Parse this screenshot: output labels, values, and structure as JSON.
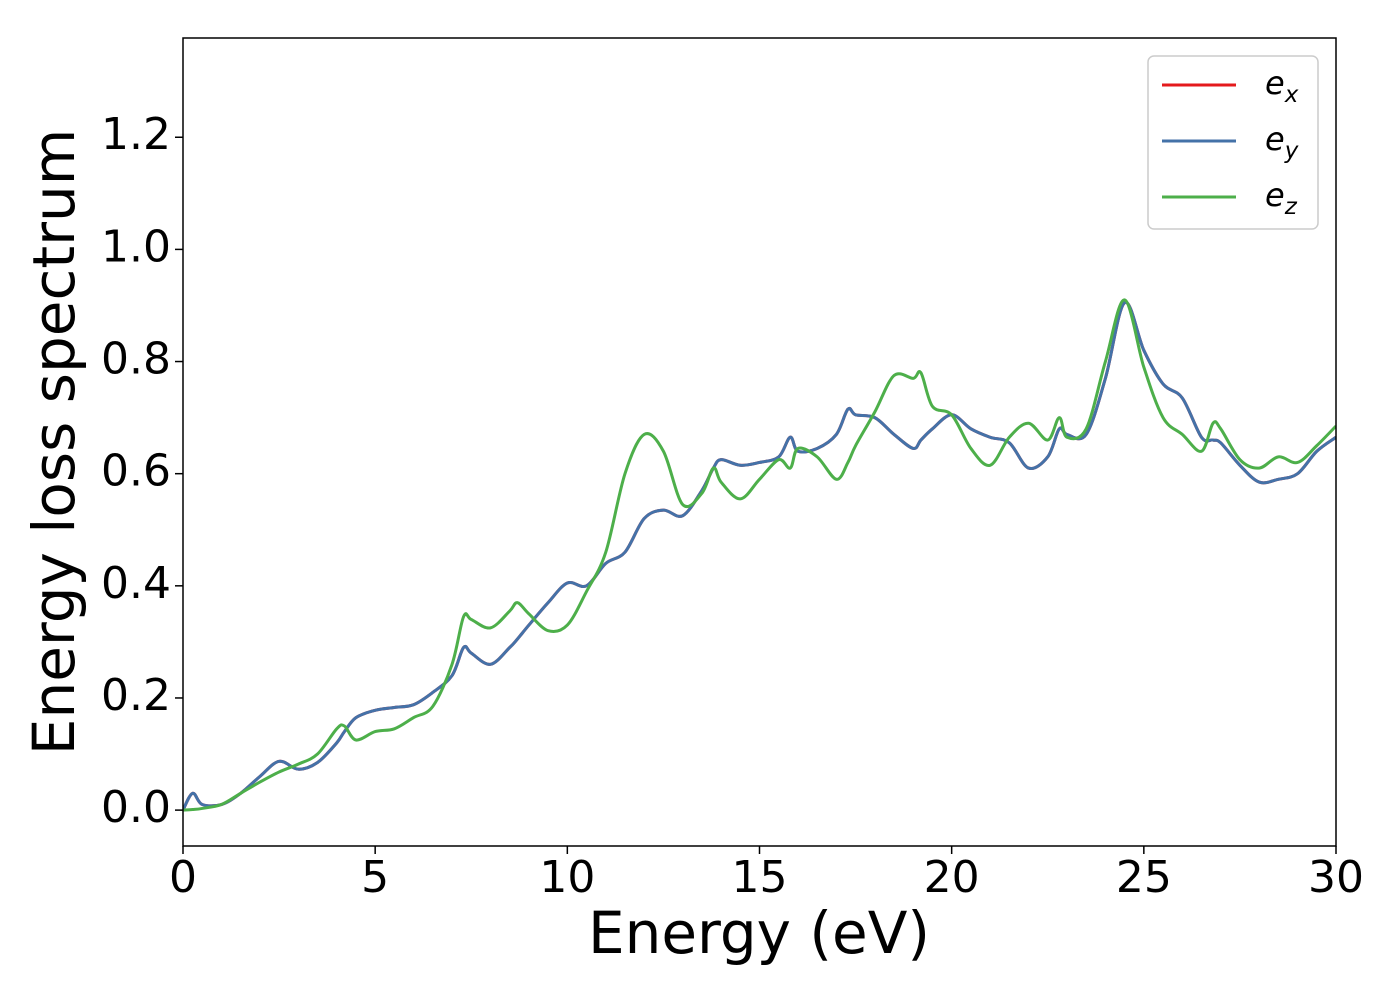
{
  "chart_data": {
    "type": "line",
    "xlabel": "Energy (eV)",
    "ylabel": "Energy loss spectrum",
    "x": [
      0,
      0.25,
      0.5,
      1,
      1.5,
      2,
      2.5,
      3,
      3.5,
      4,
      4.2,
      4.5,
      5,
      5.5,
      6,
      6.5,
      7,
      7.3,
      7.5,
      8,
      8.5,
      8.7,
      9,
      9.5,
      10,
      10.5,
      11,
      11.5,
      12,
      12.5,
      13,
      13.5,
      13.8,
      14,
      14.5,
      15,
      15.5,
      15.8,
      16,
      16.5,
      17,
      17.3,
      17.5,
      18,
      18.5,
      19,
      19.2,
      19.5,
      20,
      20.5,
      21,
      21.5,
      22,
      22.5,
      22.8,
      23,
      23.5,
      24,
      24.5,
      25,
      25.5,
      26,
      26.5,
      26.8,
      27,
      27.5,
      28,
      28.5,
      29,
      29.5,
      30
    ],
    "series": [
      {
        "name": "e_x",
        "color": "#e41a1c",
        "values": [
          0,
          0.03,
          0.01,
          0.01,
          0.03,
          0.06,
          0.087,
          0.073,
          0.085,
          0.12,
          0.14,
          0.165,
          0.178,
          0.183,
          0.188,
          0.21,
          0.24,
          0.29,
          0.28,
          0.26,
          0.29,
          0.305,
          0.33,
          0.37,
          0.405,
          0.4,
          0.44,
          0.46,
          0.52,
          0.535,
          0.525,
          0.57,
          0.61,
          0.625,
          0.615,
          0.62,
          0.63,
          0.665,
          0.64,
          0.645,
          0.67,
          0.715,
          0.705,
          0.7,
          0.67,
          0.645,
          0.66,
          0.68,
          0.705,
          0.68,
          0.665,
          0.655,
          0.61,
          0.63,
          0.68,
          0.67,
          0.67,
          0.77,
          0.905,
          0.82,
          0.76,
          0.735,
          0.665,
          0.66,
          0.655,
          0.615,
          0.585,
          0.59,
          0.6,
          0.64,
          0.665
        ]
      },
      {
        "name": "e_y",
        "color": "#4472a8",
        "values": [
          0,
          0.03,
          0.01,
          0.01,
          0.03,
          0.06,
          0.087,
          0.073,
          0.085,
          0.12,
          0.14,
          0.165,
          0.178,
          0.183,
          0.188,
          0.21,
          0.24,
          0.29,
          0.28,
          0.26,
          0.29,
          0.305,
          0.33,
          0.37,
          0.405,
          0.4,
          0.44,
          0.46,
          0.52,
          0.535,
          0.525,
          0.57,
          0.61,
          0.625,
          0.615,
          0.62,
          0.63,
          0.665,
          0.64,
          0.645,
          0.67,
          0.715,
          0.705,
          0.7,
          0.67,
          0.645,
          0.66,
          0.68,
          0.705,
          0.68,
          0.665,
          0.655,
          0.61,
          0.63,
          0.68,
          0.67,
          0.67,
          0.77,
          0.905,
          0.82,
          0.76,
          0.735,
          0.665,
          0.66,
          0.655,
          0.615,
          0.585,
          0.59,
          0.6,
          0.64,
          0.665
        ]
      },
      {
        "name": "e_z",
        "color": "#4daf4a",
        "values": [
          0,
          0.001,
          0.003,
          0.01,
          0.03,
          0.05,
          0.068,
          0.082,
          0.1,
          0.145,
          0.15,
          0.125,
          0.14,
          0.145,
          0.165,
          0.185,
          0.26,
          0.345,
          0.34,
          0.325,
          0.355,
          0.37,
          0.35,
          0.32,
          0.33,
          0.39,
          0.46,
          0.6,
          0.67,
          0.64,
          0.545,
          0.565,
          0.61,
          0.585,
          0.555,
          0.59,
          0.625,
          0.61,
          0.645,
          0.63,
          0.59,
          0.62,
          0.65,
          0.71,
          0.775,
          0.77,
          0.78,
          0.72,
          0.705,
          0.645,
          0.615,
          0.665,
          0.69,
          0.66,
          0.7,
          0.665,
          0.68,
          0.8,
          0.91,
          0.79,
          0.7,
          0.67,
          0.64,
          0.69,
          0.68,
          0.625,
          0.61,
          0.63,
          0.62,
          0.65,
          0.685
        ]
      }
    ],
    "xlim": [
      0,
      30
    ],
    "xticks": [
      0,
      5,
      10,
      15,
      20,
      25,
      30
    ],
    "ylim": [
      -0.064,
      1.377
    ],
    "yticks": [
      {
        "value": 0,
        "label": "0.0"
      },
      0.2,
      0.4,
      0.6,
      0.8,
      {
        "value": 1,
        "label": "1.0"
      },
      1.2
    ],
    "legend": "upper right",
    "grid": false
  }
}
